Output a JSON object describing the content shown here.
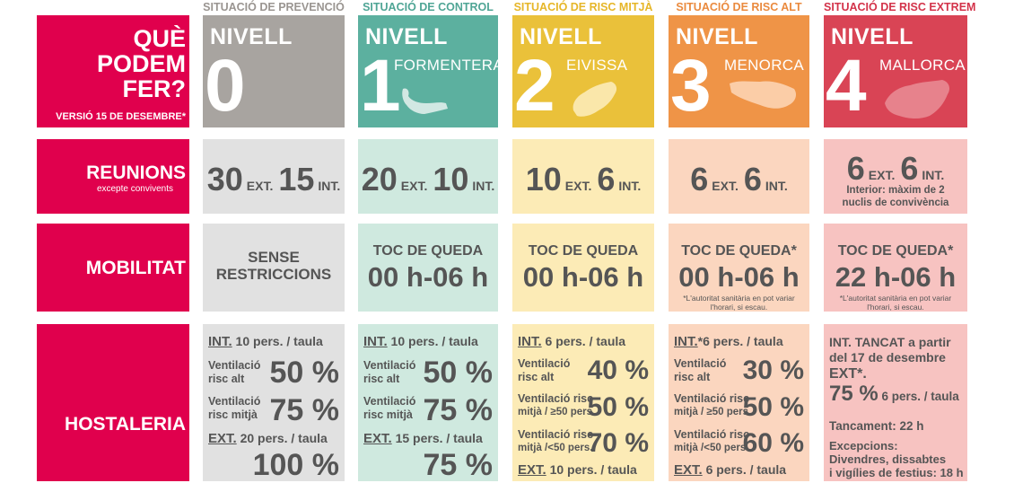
{
  "headers": [
    {
      "text": "SITUACIÓ DE PREVENCIÓ",
      "color": "#9a9591"
    },
    {
      "text": "SITUACIÓ DE CONTROL",
      "color": "#4fa595"
    },
    {
      "text": "SITUACIÓ DE RISC MITJÀ",
      "color": "#e6b628"
    },
    {
      "text": "SITUACIÓ DE RISC ALT",
      "color": "#ea8a3e"
    },
    {
      "text": "SITUACIÓ DE RISC EXTREM",
      "color": "#d3334a"
    }
  ],
  "title": {
    "line1": "QUÈ",
    "line2": "PODEM",
    "line3": "FER?",
    "version": "VERSIÓ 15 DE DESEMBRE*"
  },
  "levels": [
    {
      "label": "NIVELL",
      "number": "0",
      "island": "",
      "color": "#a8a4a0"
    },
    {
      "label": "NIVELL",
      "number": "1",
      "island": "FORMENTERA",
      "color": "#5cb09f"
    },
    {
      "label": "NIVELL",
      "number": "2",
      "island": "EIVISSA",
      "color": "#eac13a"
    },
    {
      "label": "NIVELL",
      "number": "3",
      "island": "MENORCA",
      "color": "#ef9447"
    },
    {
      "label": "NIVELL",
      "number": "4",
      "island": "MALLORCA",
      "color": "#d94455"
    }
  ],
  "rows": {
    "reunions": {
      "label": "REUNIONS",
      "sub": "excepte convivents"
    },
    "mobilitat": {
      "label": "MOBILITAT"
    },
    "hostaleria": {
      "label": "HOSTALERIA"
    }
  },
  "cell_colors": [
    "#e1e1e1",
    "#cfe9df",
    "#fcebb6",
    "#fbd6bf",
    "#f7c3c1"
  ],
  "reunions": [
    {
      "ext": "30",
      "int": "15",
      "ext_label": "EXT.",
      "int_label": "INT."
    },
    {
      "ext": "20",
      "int": "10",
      "ext_label": "EXT.",
      "int_label": "INT."
    },
    {
      "ext": "10",
      "int": "6",
      "ext_label": "EXT.",
      "int_label": "INT."
    },
    {
      "ext": "6",
      "int": "6",
      "ext_label": "EXT.",
      "int_label": "INT."
    },
    {
      "ext": "6",
      "int": "6",
      "ext_label": "EXT.",
      "int_label": "INT.",
      "note": "Interior: màxim de 2 nuclis de convivència"
    }
  ],
  "mobilitat": [
    {
      "line1": "SENSE",
      "line2": "RESTRICCIONS"
    },
    {
      "line1": "TOC DE QUEDA",
      "line2": "00 h-06 h"
    },
    {
      "line1": "TOC DE QUEDA",
      "line2": "00 h-06 h"
    },
    {
      "line1": "TOC DE QUEDA*",
      "line2": "00 h-06 h",
      "note": "*L'autoritat sanitària en pot variar l'horari, si escau."
    },
    {
      "line1": "TOC DE QUEDA*",
      "line2": "22 h-06 h",
      "note": "*L'autoritat sanitària en pot variar l'horari, si escau."
    }
  ],
  "hostaleria": {
    "c0": {
      "int_label": "INT.",
      "int_text": " 10 pers. / taula",
      "r1a": "Ventilació",
      "r1b": "risc alt",
      "p1": "50 %",
      "r2a": "Ventilació",
      "r2b": "risc mitjà",
      "p2": "75 %",
      "ext_label": "EXT.",
      "ext_text": " 20 pers. / taula",
      "p3": "100 %"
    },
    "c1": {
      "int_label": "INT.",
      "int_text": " 10 pers. / taula",
      "r1a": "Ventilació",
      "r1b": "risc alt",
      "p1": "50 %",
      "r2a": "Ventilació",
      "r2b": "risc mitjà",
      "p2": "75 %",
      "ext_label": "EXT.",
      "ext_text": " 15 pers. / taula",
      "p3": "75 %"
    },
    "c2": {
      "int_label": "INT.",
      "int_text": " 6 pers. / taula",
      "r1a": "Ventilació",
      "r1b": "risc alt",
      "p1": "40 %",
      "r2a": "Ventilació risc",
      "r2b": "mitjà / ≥50 pers.",
      "p2": "50 %",
      "r3a": "Ventilació risc",
      "r3b": "mitjà /<50 pers.",
      "p3": "70 %",
      "ext_label": "EXT.",
      "ext_text": " 10 pers. / taula"
    },
    "c3": {
      "int_label": "INT.",
      "int_text": "*6 pers. / taula",
      "r1a": "Ventilació",
      "r1b": "risc alt",
      "p1": "30 %",
      "r2a": "Ventilació risc",
      "r2b": "mitjà / ≥50 pers.",
      "p2": "50 %",
      "r3a": "Ventilació risc",
      "r3b": "mitjà /<50 pers.",
      "p3": "60 %",
      "ext_label": "EXT.",
      "ext_text": " 6 pers. / taula"
    },
    "c4": {
      "l1": "INT. TANCAT a partir",
      "l2": "del 17 de desembre",
      "l3": "EXT*.",
      "pct": "75 %",
      "pct_text": " 6 pers. / taula",
      "l4": "Tancament: 22 h",
      "l5": "Excepcions:",
      "l6": "Divendres, dissabtes",
      "l7": "i vigílies de festius: 18 h"
    }
  }
}
